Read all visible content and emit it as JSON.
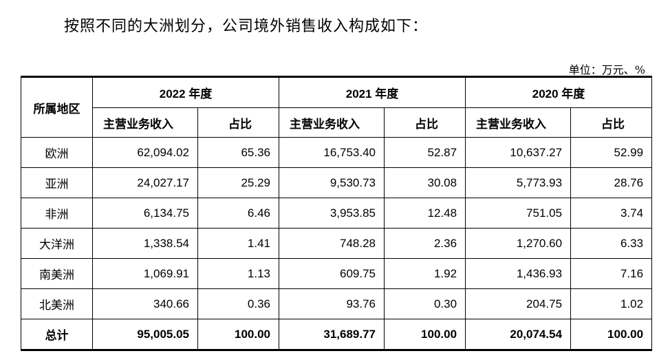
{
  "intro_text": "按照不同的大洲划分，公司境外销售收入构成如下：",
  "unit_text": "单位：万元、%",
  "table": {
    "region_header": "所属地区",
    "years": [
      "2022 年度",
      "2021 年度",
      "2020 年度"
    ],
    "sub_headers": [
      "主营业务收入",
      "占比"
    ],
    "rows": [
      {
        "region": "欧洲",
        "values": [
          "62,094.02",
          "65.36",
          "16,753.40",
          "52.87",
          "10,637.27",
          "52.99"
        ]
      },
      {
        "region": "亚洲",
        "values": [
          "24,027.17",
          "25.29",
          "9,530.73",
          "30.08",
          "5,773.93",
          "28.76"
        ]
      },
      {
        "region": "非洲",
        "values": [
          "6,134.75",
          "6.46",
          "3,953.85",
          "12.48",
          "751.05",
          "3.74"
        ]
      },
      {
        "region": "大洋洲",
        "values": [
          "1,338.54",
          "1.41",
          "748.28",
          "2.36",
          "1,270.60",
          "6.33"
        ]
      },
      {
        "region": "南美洲",
        "values": [
          "1,069.91",
          "1.13",
          "609.75",
          "1.92",
          "1,436.93",
          "7.16"
        ]
      },
      {
        "region": "北美洲",
        "values": [
          "340.66",
          "0.36",
          "93.76",
          "0.30",
          "204.75",
          "1.02"
        ]
      }
    ],
    "total": {
      "region": "总计",
      "values": [
        "95,005.05",
        "100.00",
        "31,689.77",
        "100.00",
        "20,074.54",
        "100.00"
      ]
    }
  }
}
